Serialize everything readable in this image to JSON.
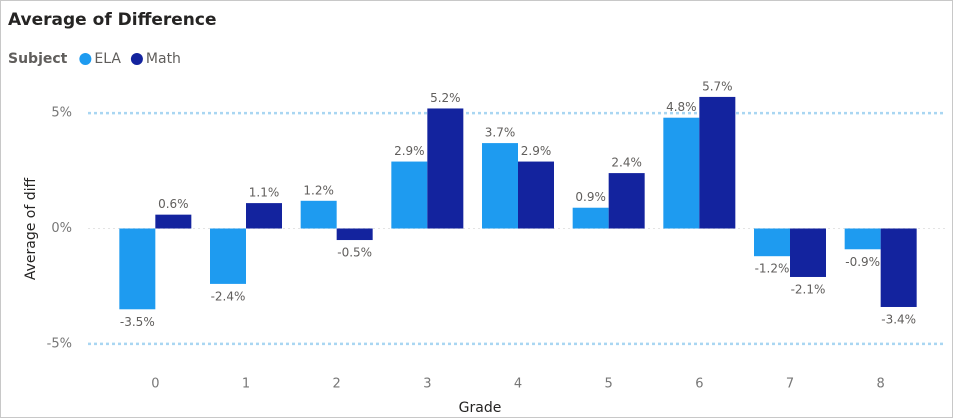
{
  "chart_data": {
    "type": "bar",
    "title": "Average of Difference",
    "legend_title": "Subject",
    "x_label": "Grade",
    "y_label": "Average of diff",
    "categories": [
      "0",
      "1",
      "2",
      "3",
      "4",
      "5",
      "6",
      "7",
      "8"
    ],
    "series": [
      {
        "name": "ELA",
        "color": "#1e9bf0",
        "values": [
          -3.5,
          -2.4,
          1.2,
          2.9,
          3.7,
          0.9,
          4.8,
          -1.2,
          -0.9
        ],
        "value_labels": [
          "-3.5%",
          "-2.4%",
          "1.2%",
          "2.9%",
          "3.7%",
          "0.9%",
          "4.8%",
          "-1.2%",
          "-0.9%"
        ]
      },
      {
        "name": "Math",
        "color": "#13239e",
        "values": [
          0.6,
          1.1,
          -0.5,
          5.2,
          2.9,
          2.4,
          5.7,
          -2.1,
          -3.4
        ],
        "value_labels": [
          "0.6%",
          "1.1%",
          "-0.5%",
          "5.2%",
          "2.9%",
          "2.4%",
          "5.7%",
          "-2.1%",
          "-3.4%"
        ]
      }
    ],
    "ylim": [
      -6,
      6
    ],
    "yticks": [
      {
        "value": -5,
        "label": "-5%"
      },
      {
        "value": 0,
        "label": "0%"
      },
      {
        "value": 5,
        "label": "5%"
      }
    ],
    "grid": true,
    "legend_position": "top-left"
  }
}
